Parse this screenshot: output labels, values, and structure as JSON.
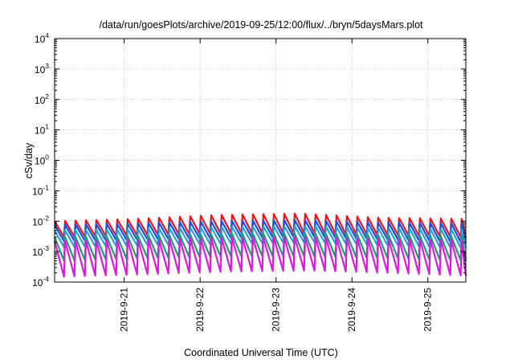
{
  "chart_data": {
    "type": "line",
    "title": "/data/run/goesPlots/archive/2019-09-25/12:00/flux/../bryn/5daysMars.plot",
    "xlabel": "Coordinated Universal Time (UTC)",
    "ylabel": "cSv/day",
    "yscale": "log",
    "ylim": [
      0.0001,
      10000
    ],
    "xlim": [
      "2019-09-20 02:00",
      "2019-09-25 12:00"
    ],
    "x_ticks": [
      "2019-9-21",
      "2019-9-22",
      "2019-9-23",
      "2019-9-24",
      "2019-9-25"
    ],
    "y_ticks": [
      {
        "base": "10",
        "exp": "-4"
      },
      {
        "base": "10",
        "exp": "-3"
      },
      {
        "base": "10",
        "exp": "-2"
      },
      {
        "base": "10",
        "exp": "-1"
      },
      {
        "base": "10",
        "exp": "0"
      },
      {
        "base": "10",
        "exp": "1"
      },
      {
        "base": "10",
        "exp": "2"
      },
      {
        "base": "10",
        "exp": "3"
      },
      {
        "base": "10",
        "exp": "4"
      }
    ],
    "grid": true,
    "legend": "none",
    "cycle_hours": 3.3,
    "series": [
      {
        "color": "#e8141c",
        "top": [
          0.01,
          0.012,
          0.016,
          0.018,
          0.013,
          0.012
        ],
        "bottom": [
          0.003,
          0.0035,
          0.004,
          0.004,
          0.0035,
          0.003
        ]
      },
      {
        "color": "#1a4fd6",
        "top": [
          0.0075,
          0.0085,
          0.01,
          0.011,
          0.009,
          0.0085
        ],
        "bottom": [
          0.0022,
          0.0025,
          0.0028,
          0.003,
          0.0025,
          0.002
        ]
      },
      {
        "color": "#2a9fd8",
        "top": [
          0.005,
          0.0055,
          0.0065,
          0.007,
          0.006,
          0.0055
        ],
        "bottom": [
          0.0014,
          0.0016,
          0.0018,
          0.002,
          0.0016,
          0.0013
        ]
      },
      {
        "color": "#16a06a",
        "top": [
          0.003,
          0.0032,
          0.0038,
          0.004,
          0.0035,
          0.0032
        ],
        "bottom": [
          0.0005,
          0.0006,
          0.0007,
          0.0007,
          0.0006,
          0.0005
        ]
      },
      {
        "color": "#dc1adc",
        "top": [
          0.0022,
          0.0024,
          0.0028,
          0.003,
          0.0026,
          0.0024
        ],
        "bottom": [
          0.00015,
          0.00018,
          0.00022,
          0.00024,
          0.0002,
          0.00016
        ]
      }
    ]
  }
}
